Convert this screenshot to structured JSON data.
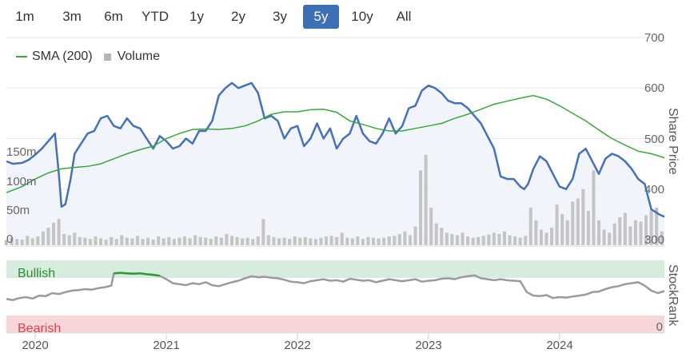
{
  "range_selector": {
    "buttons": [
      "1m",
      "3m",
      "6m",
      "YTD",
      "1y",
      "2y",
      "3y",
      "5y",
      "10y",
      "All"
    ],
    "selected": "5y",
    "active_color": "#3d6fb6"
  },
  "legend": {
    "sma_label": "SMA (200)",
    "volume_label": "Volume"
  },
  "axes": {
    "price_title": "Share Price",
    "price_ticks": [
      "700",
      "600",
      "500",
      "400",
      "300"
    ],
    "volume_ticks": [
      "150m",
      "100m",
      "50m",
      "0"
    ],
    "stockrank_title": "StockRank",
    "stockrank_bullish": "Bullish",
    "stockrank_bearish": "Bearish",
    "stockrank_zero": "0",
    "x_ticks": [
      "2020",
      "2021",
      "2022",
      "2023",
      "2024"
    ]
  },
  "colors": {
    "price_line": "#4471b8",
    "price_fill": "#eef2fa",
    "sma_line": "#3aa63a",
    "volume_bar": "#bdbdbd",
    "stockrank_line": "#9a9a9a",
    "stockrank_bullish_line": "#2e9a35",
    "bullish_band": "#d7ecdc",
    "bearish_band": "#f6d6d8",
    "bullish_text": "#2e8b3a",
    "bearish_text": "#d9434d"
  },
  "chart_data": [
    {
      "type": "line",
      "title": "",
      "ylabel": "Share Price",
      "ylim": [
        300,
        700
      ],
      "x_axis": "time",
      "x_range": [
        2019.78,
        2024.8
      ],
      "series": [
        {
          "name": "",
          "role": "price",
          "x": [
            2019.78,
            2019.83,
            2019.9,
            2019.95,
            2020.0,
            2020.05,
            2020.1,
            2020.15,
            2020.18,
            2020.2,
            2020.23,
            2020.27,
            2020.3,
            2020.35,
            2020.4,
            2020.45,
            2020.5,
            2020.55,
            2020.6,
            2020.65,
            2020.7,
            2020.75,
            2020.8,
            2020.85,
            2020.9,
            2020.95,
            2021.0,
            2021.05,
            2021.1,
            2021.15,
            2021.2,
            2021.25,
            2021.3,
            2021.35,
            2021.4,
            2021.45,
            2021.5,
            2021.55,
            2021.6,
            2021.65,
            2021.7,
            2021.75,
            2021.8,
            2021.85,
            2021.9,
            2021.95,
            2022.0,
            2022.05,
            2022.1,
            2022.15,
            2022.2,
            2022.25,
            2022.3,
            2022.35,
            2022.4,
            2022.45,
            2022.5,
            2022.55,
            2022.6,
            2022.65,
            2022.7,
            2022.75,
            2022.8,
            2022.85,
            2022.9,
            2022.95,
            2023.0,
            2023.05,
            2023.1,
            2023.15,
            2023.2,
            2023.25,
            2023.3,
            2023.35,
            2023.4,
            2023.45,
            2023.5,
            2023.55,
            2023.6,
            2023.65,
            2023.7,
            2023.73,
            2023.76,
            2023.8,
            2023.85,
            2023.9,
            2023.95,
            2024.0,
            2024.05,
            2024.1,
            2024.15,
            2024.2,
            2024.25,
            2024.3,
            2024.35,
            2024.4,
            2024.45,
            2024.5,
            2024.55,
            2024.6,
            2024.65,
            2024.68,
            2024.7,
            2024.73,
            2024.76,
            2024.8
          ],
          "values": [
            455,
            450,
            452,
            458,
            468,
            480,
            495,
            510,
            430,
            365,
            370,
            420,
            470,
            490,
            510,
            515,
            540,
            545,
            525,
            520,
            540,
            525,
            520,
            500,
            480,
            505,
            495,
            480,
            485,
            500,
            490,
            515,
            515,
            535,
            585,
            600,
            610,
            600,
            605,
            610,
            590,
            540,
            545,
            535,
            500,
            520,
            525,
            485,
            500,
            530,
            500,
            520,
            480,
            500,
            510,
            545,
            510,
            495,
            490,
            510,
            540,
            510,
            525,
            560,
            565,
            595,
            605,
            600,
            590,
            575,
            570,
            570,
            560,
            545,
            530,
            505,
            480,
            425,
            420,
            420,
            405,
            400,
            410,
            440,
            465,
            455,
            430,
            405,
            400,
            420,
            470,
            480,
            455,
            430,
            460,
            470,
            465,
            455,
            440,
            420,
            410,
            380,
            360,
            355,
            350,
            345
          ]
        },
        {
          "name": "SMA (200)",
          "role": "sma",
          "x": [
            2019.78,
            2019.9,
            2020.0,
            2020.1,
            2020.2,
            2020.3,
            2020.4,
            2020.5,
            2020.6,
            2020.7,
            2020.8,
            2020.9,
            2021.0,
            2021.1,
            2021.2,
            2021.3,
            2021.4,
            2021.5,
            2021.6,
            2021.7,
            2021.8,
            2021.9,
            2022.0,
            2022.1,
            2022.2,
            2022.3,
            2022.4,
            2022.5,
            2022.6,
            2022.7,
            2022.8,
            2022.9,
            2023.0,
            2023.1,
            2023.2,
            2023.3,
            2023.4,
            2023.5,
            2023.6,
            2023.7,
            2023.8,
            2023.9,
            2024.0,
            2024.1,
            2024.2,
            2024.3,
            2024.4,
            2024.5,
            2024.6,
            2024.7,
            2024.8
          ],
          "values": [
            393,
            405,
            420,
            432,
            440,
            443,
            445,
            450,
            460,
            470,
            478,
            485,
            500,
            510,
            518,
            519,
            518,
            520,
            525,
            535,
            548,
            553,
            553,
            557,
            558,
            552,
            535,
            528,
            520,
            515,
            515,
            520,
            525,
            530,
            540,
            548,
            558,
            568,
            574,
            580,
            585,
            578,
            565,
            550,
            535,
            517,
            500,
            487,
            475,
            470,
            462
          ]
        }
      ]
    },
    {
      "type": "bar",
      "title": "",
      "ylabel": "Volume",
      "ylim": [
        0,
        150
      ],
      "x_axis": "time",
      "series": [
        {
          "name": "Volume",
          "x": [
            2019.78,
            2019.82,
            2019.86,
            2019.9,
            2019.94,
            2019.98,
            2020.02,
            2020.06,
            2020.1,
            2020.14,
            2020.18,
            2020.22,
            2020.26,
            2020.3,
            2020.34,
            2020.38,
            2020.42,
            2020.46,
            2020.5,
            2020.54,
            2020.58,
            2020.62,
            2020.66,
            2020.7,
            2020.74,
            2020.78,
            2020.82,
            2020.86,
            2020.9,
            2020.94,
            2020.98,
            2021.02,
            2021.06,
            2021.1,
            2021.14,
            2021.18,
            2021.22,
            2021.26,
            2021.3,
            2021.34,
            2021.38,
            2021.42,
            2021.46,
            2021.5,
            2021.54,
            2021.58,
            2021.62,
            2021.66,
            2021.7,
            2021.74,
            2021.78,
            2021.82,
            2021.86,
            2021.9,
            2021.94,
            2021.98,
            2022.02,
            2022.06,
            2022.1,
            2022.14,
            2022.18,
            2022.22,
            2022.26,
            2022.3,
            2022.34,
            2022.38,
            2022.42,
            2022.46,
            2022.5,
            2022.54,
            2022.58,
            2022.62,
            2022.66,
            2022.7,
            2022.74,
            2022.78,
            2022.82,
            2022.86,
            2022.9,
            2022.94,
            2022.98,
            2023.02,
            2023.06,
            2023.1,
            2023.14,
            2023.18,
            2023.22,
            2023.26,
            2023.3,
            2023.34,
            2023.38,
            2023.42,
            2023.46,
            2023.5,
            2023.54,
            2023.58,
            2023.62,
            2023.66,
            2023.7,
            2023.74,
            2023.78,
            2023.82,
            2023.86,
            2023.9,
            2023.94,
            2023.98,
            2024.02,
            2024.06,
            2024.1,
            2024.14,
            2024.18,
            2024.22,
            2024.26,
            2024.3,
            2024.34,
            2024.38,
            2024.42,
            2024.46,
            2024.5,
            2024.54,
            2024.58,
            2024.62,
            2024.66,
            2024.7,
            2024.74,
            2024.78
          ],
          "values": [
            8,
            12,
            10,
            9,
            15,
            11,
            14,
            22,
            28,
            36,
            42,
            18,
            16,
            20,
            13,
            12,
            10,
            14,
            11,
            9,
            13,
            10,
            16,
            12,
            11,
            15,
            10,
            12,
            9,
            14,
            11,
            13,
            10,
            12,
            14,
            11,
            16,
            13,
            12,
            10,
            14,
            12,
            18,
            15,
            13,
            11,
            12,
            10,
            14,
            42,
            16,
            13,
            11,
            12,
            10,
            14,
            12,
            13,
            11,
            10,
            12,
            14,
            15,
            13,
            20,
            12,
            11,
            14,
            10,
            13,
            12,
            11,
            12,
            14,
            15,
            18,
            22,
            16,
            30,
            120,
            145,
            60,
            35,
            28,
            20,
            18,
            16,
            20,
            14,
            12,
            13,
            15,
            17,
            20,
            18,
            22,
            16,
            14,
            12,
            15,
            60,
            40,
            25,
            20,
            28,
            65,
            50,
            40,
            70,
            75,
            90,
            55,
            120,
            40,
            25,
            20,
            35,
            45,
            52,
            30,
            40,
            38,
            48,
            56,
            60,
            22
          ]
        }
      ]
    },
    {
      "type": "line",
      "title": "",
      "ylabel": "StockRank",
      "ylim": [
        0,
        100
      ],
      "x_axis": "time",
      "labels": {
        "top_band": "Bullish",
        "bottom_band": "Bearish"
      },
      "series": [
        {
          "name": "",
          "x": [
            2019.78,
            2019.83,
            2019.88,
            2019.93,
            2019.98,
            2020.03,
            2020.08,
            2020.13,
            2020.18,
            2020.23,
            2020.28,
            2020.33,
            2020.38,
            2020.43,
            2020.48,
            2020.53,
            2020.58,
            2020.6,
            2020.65,
            2020.7,
            2020.75,
            2020.8,
            2020.85,
            2020.9,
            2020.95,
            2021.0,
            2021.05,
            2021.1,
            2021.15,
            2021.2,
            2021.25,
            2021.3,
            2021.35,
            2021.4,
            2021.45,
            2021.5,
            2021.55,
            2021.6,
            2021.65,
            2021.7,
            2021.75,
            2021.8,
            2021.85,
            2021.9,
            2021.95,
            2022.0,
            2022.05,
            2022.1,
            2022.15,
            2022.2,
            2022.25,
            2022.3,
            2022.35,
            2022.4,
            2022.45,
            2022.5,
            2022.55,
            2022.6,
            2022.65,
            2022.7,
            2022.75,
            2022.8,
            2022.85,
            2022.9,
            2022.95,
            2023.0,
            2023.05,
            2023.1,
            2023.15,
            2023.2,
            2023.25,
            2023.3,
            2023.35,
            2023.4,
            2023.45,
            2023.5,
            2023.55,
            2023.6,
            2023.65,
            2023.7,
            2023.75,
            2023.8,
            2023.85,
            2023.9,
            2023.95,
            2024.0,
            2024.05,
            2024.1,
            2024.15,
            2024.2,
            2024.25,
            2024.3,
            2024.35,
            2024.4,
            2024.45,
            2024.5,
            2024.55,
            2024.6,
            2024.65,
            2024.7,
            2024.75,
            2024.8
          ],
          "values": [
            38,
            36,
            40,
            42,
            39,
            45,
            44,
            50,
            48,
            52,
            55,
            56,
            58,
            57,
            60,
            62,
            65,
            90,
            91,
            90,
            89,
            90,
            88,
            87,
            85,
            78,
            70,
            68,
            66,
            70,
            68,
            72,
            66,
            64,
            68,
            72,
            75,
            80,
            84,
            82,
            83,
            81,
            80,
            77,
            73,
            72,
            70,
            74,
            76,
            78,
            75,
            76,
            73,
            79,
            77,
            75,
            76,
            72,
            75,
            78,
            76,
            74,
            76,
            78,
            73,
            75,
            76,
            79,
            80,
            78,
            82,
            84,
            86,
            80,
            78,
            76,
            78,
            76,
            75,
            74,
            52,
            45,
            44,
            46,
            40,
            42,
            41,
            43,
            45,
            47,
            52,
            53,
            58,
            62,
            64,
            68,
            70,
            72,
            65,
            55,
            50,
            54
          ]
        }
      ]
    }
  ]
}
